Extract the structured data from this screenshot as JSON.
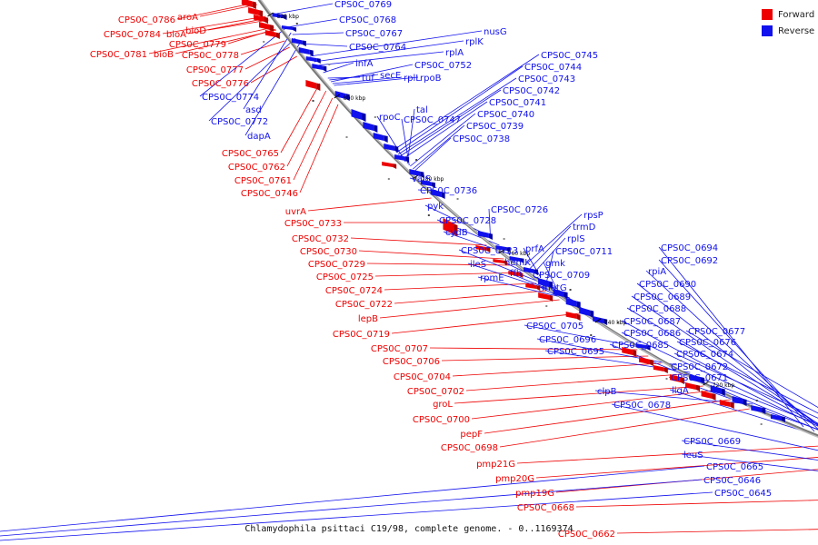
{
  "caption": "Chlamydophila psittaci C19/98, complete genome. - 0..1169374",
  "legend": [
    {
      "label": "Forward",
      "color": "#ee0000"
    },
    {
      "label": "Reverse",
      "color": "#1111ee"
    }
  ],
  "colors": {
    "forward": "#ee0000",
    "reverse": "#1111ee",
    "backbone": "#777777"
  },
  "ticks": [
    "820 kbp",
    "800 kbp",
    "780 kbp",
    "760 kbp",
    "740 kbp",
    "720 kbp",
    "700 kbp",
    "680 kbp",
    "660 kbp"
  ],
  "forward_labels": [
    "CPS0C_0786",
    "aroA",
    "CPS0C_0784",
    "bioA",
    "bioD",
    "CPS0C_0779",
    "CPS0C_0781",
    "bioB",
    "CPS0C_0778",
    "CPS0C_0777",
    "CPS0C_0776",
    "CPS0C_0765",
    "CPS0C_0762",
    "CPS0C_0761",
    "CPS0C_0746",
    "uvrA",
    "CPS0C_0733",
    "CPS0C_0732",
    "CPS0C_0730",
    "CPS0C_0729",
    "CPS0C_0725",
    "CPS0C_0724",
    "CPS0C_0722",
    "lepB",
    "CPS0C_0719",
    "CPS0C_0707",
    "CPS0C_0706",
    "CPS0C_0704",
    "CPS0C_0702",
    "groL",
    "CPS0C_0700",
    "pepF",
    "CPS0C_0698",
    "pmp21G",
    "pmp20G",
    "pmp19G",
    "CPS0C_0668",
    "CPS0C_0662"
  ],
  "reverse_labels": [
    "CPS0C_0769",
    "CPS0C_0768",
    "CPS0C_0767",
    "CPS0C_0764",
    "nusG",
    "rplK",
    "rplA",
    "infA",
    "tuf",
    "secE",
    "CPS0C_0752",
    "rplL",
    "rpoB",
    "CPS0C_0774",
    "asd",
    "CPS0C_0772",
    "dapA",
    "CPS0C_0745",
    "CPS0C_0744",
    "CPS0C_0743",
    "CPS0C_0742",
    "CPS0C_0741",
    "rpoC",
    "tal",
    "CPS0C_0747",
    "CPS0C_0740",
    "CPS0C_0739",
    "CPS0C_0738",
    "valS",
    "CPS0C_0736",
    "CPS0C_0726",
    "pyk",
    "CPS0C_0728",
    "rpsP",
    "trmD",
    "cydB",
    "rplS",
    "CPS0C_0723",
    "prfA",
    "CPS0C_0711",
    "ileS",
    "hemK",
    "gmk",
    "rpmE",
    "ffh",
    "CPS0C_0709",
    "metG",
    "CPS0C_0694",
    "CPS0C_0692",
    "rpiA",
    "CPS0C_0690",
    "CPS0C_0689",
    "CPS0C_0688",
    "CPS0C_0687",
    "CPS0C_0705",
    "CPS0C_0686",
    "CPS0C_0696",
    "CPS0C_0685",
    "CPS0C_0695",
    "CPS0C_0677",
    "CPS0C_0676",
    "CPS0C_0674",
    "CPS0C_0672",
    "CPS0C_0671",
    "clpB",
    "ligA",
    "CPS0C_0678",
    "CPS0C_0669",
    "leuS",
    "CPS0C_0665",
    "CPS0C_0646",
    "CPS0C_0645"
  ]
}
